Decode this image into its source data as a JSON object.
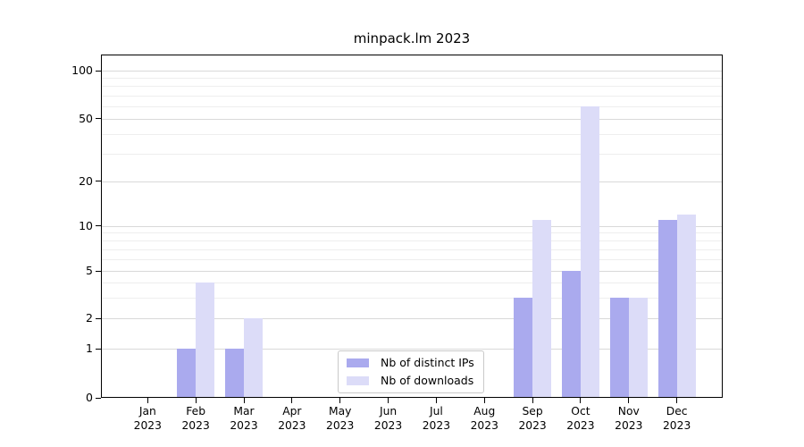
{
  "title": "minpack.lm 2023",
  "legend": {
    "items": [
      {
        "label": "Nb of distinct IPs",
        "color": "#aaaaee"
      },
      {
        "label": "Nb of downloads",
        "color": "#dcdcf8"
      }
    ]
  },
  "colors": {
    "ips_bar": "#aaaaee",
    "downloads_bar": "#dcdcf8",
    "grid_major": "#d9d9d9",
    "grid_minor": "#eeeeee",
    "axis": "#000000",
    "text": "#000000"
  },
  "y_axis": {
    "major_ticks": [
      0,
      1,
      2,
      5,
      10,
      20,
      50,
      100
    ],
    "minor_gridline_values": [
      3,
      4,
      6,
      7,
      8,
      9,
      30,
      40,
      60,
      70,
      80,
      90
    ],
    "scale": "log-like with linear 0-1 segment"
  },
  "x_axis": {
    "months": [
      "Jan",
      "Feb",
      "Mar",
      "Apr",
      "May",
      "Jun",
      "Jul",
      "Aug",
      "Sep",
      "Oct",
      "Nov",
      "Dec"
    ],
    "year_label": "2023"
  },
  "chart_data": {
    "type": "bar",
    "title": "minpack.lm 2023",
    "categories": [
      "Jan 2023",
      "Feb 2023",
      "Mar 2023",
      "Apr 2023",
      "May 2023",
      "Jun 2023",
      "Jul 2023",
      "Aug 2023",
      "Sep 2023",
      "Oct 2023",
      "Nov 2023",
      "Dec 2023"
    ],
    "series": [
      {
        "name": "Nb of distinct IPs",
        "color": "#aaaaee",
        "values": [
          0,
          1,
          1,
          0,
          0,
          0,
          0,
          0,
          3,
          5,
          3,
          11
        ]
      },
      {
        "name": "Nb of downloads",
        "color": "#dcdcf8",
        "values": [
          0,
          4,
          2,
          0,
          0,
          0,
          0,
          0,
          11,
          60,
          3,
          12
        ]
      }
    ],
    "xlabel": "",
    "ylabel": "",
    "ylim": [
      0,
      127
    ],
    "yticks": [
      0,
      1,
      2,
      5,
      10,
      20,
      50,
      100
    ],
    "grid": true,
    "legend_position": "lower center"
  }
}
